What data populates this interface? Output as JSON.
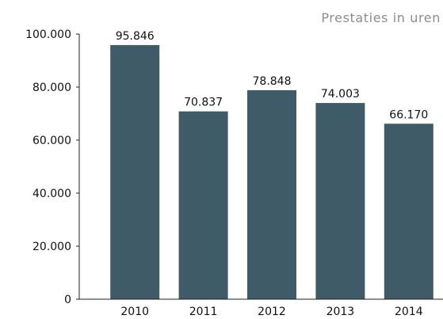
{
  "chart_data": {
    "type": "bar",
    "title": "Prestaties in uren",
    "categories": [
      "2010",
      "2011",
      "2012",
      "2013",
      "2014"
    ],
    "values": [
      95846,
      70837,
      78848,
      74003,
      66170
    ],
    "value_labels": [
      "95.846",
      "70.837",
      "78.848",
      "74.003",
      "66.170"
    ],
    "xlabel": "",
    "ylabel": "",
    "ylim": [
      0,
      100000
    ],
    "y_ticks": [
      0,
      20000,
      40000,
      60000,
      80000,
      100000
    ],
    "y_tick_labels": [
      "0",
      "20.000",
      "40.000",
      "60.000",
      "80.000",
      "100.000"
    ],
    "grid": false,
    "legend": "none",
    "bar_color": "#3f5b68"
  }
}
